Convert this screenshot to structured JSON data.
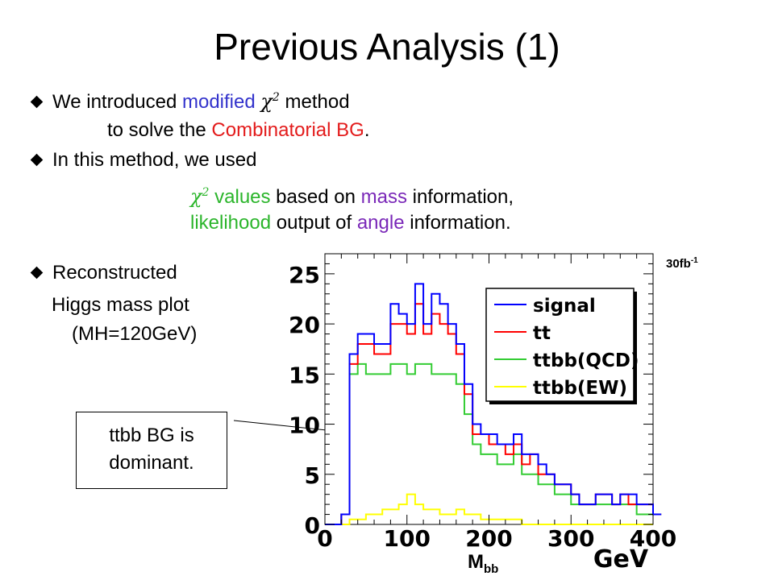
{
  "slide": {
    "title": "Previous Analysis (1)",
    "b1_pre": "We  introduced ",
    "b1_modified": "modified ",
    "b1_chi": "χ",
    "b1_sup": "2",
    "b1_post": " method",
    "b1_line2_pre": "to solve the ",
    "b1_line2_bg": "Combinatorial  BG",
    "b1_line2_post": ".",
    "b2_line1": "In this method, we used",
    "b2_chi": "χ",
    "b2_sup": "2",
    "b2_values": " values",
    "b2_based": " based on ",
    "b2_mass": "mass",
    "b2_info1": " information,",
    "b2_likelihood": "likelihood",
    "b2_output": " output of ",
    "b2_angle": "angle",
    "b2_info2": " information.",
    "b3_line1": "Reconstructed",
    "b3_line2": "Higgs mass plot",
    "b3_line3": "(MH=120GeV)",
    "annot_line1": "ttbb BG is",
    "annot_line2": "dominant.",
    "lumi_main": "30fb",
    "lumi_sup": "-1",
    "mbb_main": "M",
    "mbb_sub": "bb",
    "gev": "GeV"
  },
  "colors": {
    "signal": "#0000ff",
    "tt": "#ff0000",
    "ttbb_qcd": "#33cc33",
    "ttbb_ew": "#ffff00",
    "accent_blue": "#3333cc",
    "accent_red": "#e31b1b",
    "accent_green": "#2bb52b",
    "accent_purple": "#7a28b8"
  },
  "chart_data": {
    "type": "histogram-step",
    "xlim": [
      0,
      400
    ],
    "ylim": [
      0,
      27
    ],
    "bin_width": 10,
    "x_ticks": [
      "0",
      "100",
      "200",
      "300",
      "400"
    ],
    "y_ticks": [
      "0",
      "5",
      "10",
      "15",
      "20",
      "25"
    ],
    "series": [
      {
        "name": "signal",
        "color": "#0000ff",
        "values": [
          0,
          0,
          1,
          17,
          19,
          19,
          18,
          18,
          22,
          21,
          20,
          24,
          20,
          23,
          22,
          20,
          18,
          14,
          10,
          9,
          9,
          8,
          8,
          9,
          7,
          7,
          6,
          5,
          4,
          4,
          3,
          2,
          2,
          3,
          3,
          2,
          3,
          3,
          2,
          2,
          1
        ]
      },
      {
        "name": "tt",
        "color": "#ff0000",
        "values": [
          0,
          0,
          1,
          16,
          18,
          18,
          17,
          17,
          20,
          20,
          19,
          22,
          19,
          21,
          20,
          19,
          17,
          13,
          9,
          9,
          8,
          8,
          7,
          8,
          6,
          7,
          5,
          5,
          4,
          4,
          3,
          2,
          2,
          3,
          3,
          2,
          3,
          2,
          2,
          2,
          1
        ]
      },
      {
        "name": "ttbb(QCD)",
        "color": "#33cc33",
        "values": [
          0,
          0,
          1,
          15,
          16,
          15,
          15,
          15,
          16,
          16,
          15,
          16,
          16,
          15,
          15,
          15,
          14,
          11,
          8,
          7,
          7,
          6,
          6,
          7,
          5,
          5,
          4,
          4,
          3,
          3,
          2,
          2,
          2,
          2,
          2,
          2,
          2,
          2,
          1,
          1,
          1
        ]
      },
      {
        "name": "ttbb(EW)",
        "color": "#ffff00",
        "values": [
          0,
          0,
          0,
          0.5,
          0.5,
          1,
          1,
          1.5,
          1.5,
          2,
          3,
          2,
          1.5,
          1.5,
          1,
          1,
          1.5,
          1,
          1,
          0.5,
          0.5,
          0.5,
          0.5,
          0.5,
          0,
          0,
          0,
          0,
          0,
          0,
          0,
          0,
          0,
          0,
          0,
          0,
          0,
          0,
          0,
          0
        ]
      }
    ],
    "legend": [
      "signal",
      "tt",
      "ttbb(QCD)",
      "ttbb(EW)"
    ],
    "legend_position": "top-right"
  }
}
